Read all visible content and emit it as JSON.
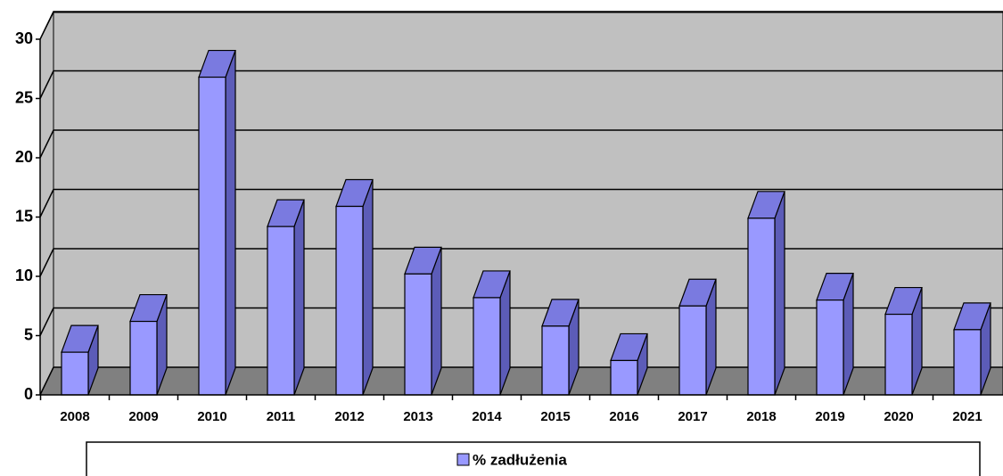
{
  "chart_data": {
    "type": "bar3d",
    "categories": [
      "2008",
      "2009",
      "2010",
      "2011",
      "2012",
      "2013",
      "2014",
      "2015",
      "2016",
      "2017",
      "2018",
      "2019",
      "2020",
      "2021"
    ],
    "series": [
      {
        "name": "% zadłużenia",
        "color": "#9999ff",
        "values": [
          3.6,
          6.2,
          26.8,
          14.2,
          15.9,
          10.2,
          8.2,
          5.8,
          2.9,
          7.5,
          14.9,
          8.0,
          6.8,
          5.5
        ]
      }
    ],
    "ylim": [
      0,
      30
    ],
    "yticks": [
      0,
      5,
      10,
      15,
      20,
      25,
      30
    ],
    "grid": true,
    "legend": "bottom"
  }
}
